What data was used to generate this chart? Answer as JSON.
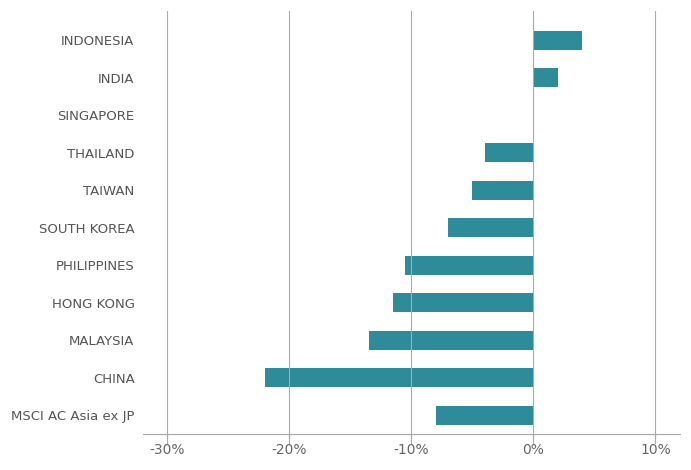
{
  "categories": [
    "INDONESIA",
    "INDIA",
    "SINGAPORE",
    "THAILAND",
    "TAIWAN",
    "SOUTH KOREA",
    "PHILIPPINES",
    "HONG KONG",
    "MALAYSIA",
    "CHINA",
    "MSCI AC Asia ex JP"
  ],
  "values": [
    4.0,
    2.0,
    0.0,
    -4.0,
    -5.0,
    -7.0,
    -10.5,
    -11.5,
    -13.5,
    -22.0,
    -8.0
  ],
  "bar_color": "#2e8b9a",
  "xlim": [
    -32,
    12
  ],
  "xticks": [
    -30,
    -20,
    -10,
    0,
    10
  ],
  "xtick_labels": [
    "-30%",
    "-20%",
    "-10%",
    "0%",
    "10%"
  ],
  "background_color": "#ffffff",
  "grid_color": "#aaaaaa",
  "label_fontsize": 9.5,
  "tick_fontsize": 9.5,
  "bar_height": 0.5
}
